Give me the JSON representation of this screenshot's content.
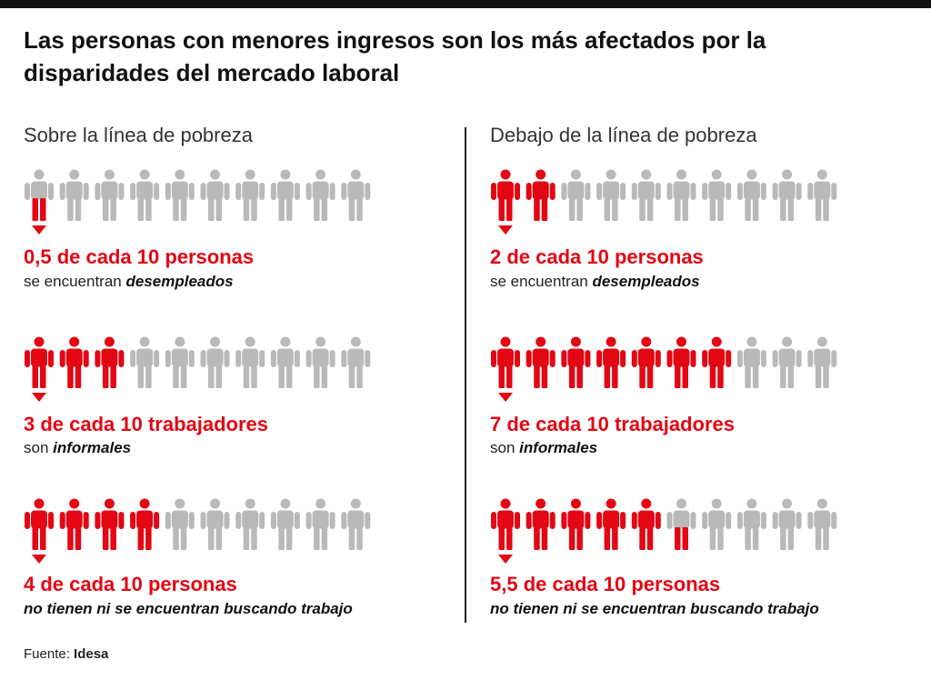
{
  "title": "Las personas con menores ingresos son los más afectados por la disparidades del mercado laboral",
  "source_label": "Fuente:",
  "source_name": "Idesa",
  "colors": {
    "highlight": "#e30613",
    "neutral": "#b9b9b9"
  },
  "chart_data": {
    "type": "pictogram",
    "total_per_row": 10,
    "columns": [
      {
        "title": "Sobre la línea de pobreza",
        "rows": [
          {
            "value": 0.5,
            "stat": "0,5 de cada 10 personas",
            "desc_plain": "se encuentran ",
            "desc_emph": "desempleados"
          },
          {
            "value": 3,
            "stat": "3 de cada 10 trabajadores",
            "desc_plain": "son ",
            "desc_emph": "informales"
          },
          {
            "value": 4,
            "stat": "4 de cada 10 personas",
            "desc_plain": "",
            "desc_emph": "no tienen ni se encuentran buscando trabajo"
          }
        ]
      },
      {
        "title": "Debajo de la línea de pobreza",
        "rows": [
          {
            "value": 2,
            "stat": "2 de cada 10 personas",
            "desc_plain": "se encuentran ",
            "desc_emph": "desempleados"
          },
          {
            "value": 7,
            "stat": "7 de cada 10 trabajadores",
            "desc_plain": "son ",
            "desc_emph": "informales"
          },
          {
            "value": 5.5,
            "stat": "5,5 de cada 10 personas",
            "desc_plain": "",
            "desc_emph": "no tienen ni se encuentran buscando trabajo"
          }
        ]
      }
    ]
  }
}
